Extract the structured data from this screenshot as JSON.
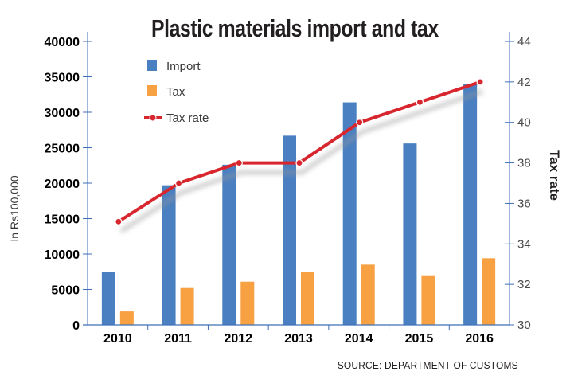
{
  "chart_data": {
    "type": "bar",
    "title": "Plastic materials import and tax",
    "ylabel": "In Rs100,000",
    "y2label": "Tax rate",
    "source": "SOURCE: DEPARTMENT OF CUSTOMS",
    "categories": [
      "2010",
      "2011",
      "2012",
      "2013",
      "2014",
      "2015",
      "2016"
    ],
    "ylim": [
      0,
      40000
    ],
    "y2lim": [
      30,
      44
    ],
    "yticks": [
      0,
      5000,
      10000,
      15000,
      20000,
      25000,
      30000,
      35000,
      40000
    ],
    "y2ticks": [
      30,
      32,
      34,
      36,
      38,
      40,
      42,
      44
    ],
    "series": [
      {
        "name": "Import",
        "type": "bar",
        "axis": "left",
        "color": "#4a7fc1",
        "values": [
          7500,
          19700,
          22600,
          26700,
          31400,
          25600,
          34000
        ]
      },
      {
        "name": "Tax",
        "type": "bar",
        "axis": "left",
        "color": "#f7a142",
        "values": [
          1900,
          5200,
          6100,
          7500,
          8500,
          7000,
          9400
        ]
      },
      {
        "name": "Tax rate",
        "type": "line",
        "axis": "right",
        "color": "#d7262e",
        "values": [
          35.1,
          37,
          38,
          38,
          40,
          41,
          42
        ]
      }
    ],
    "legend_position": "top-left",
    "grid": false
  }
}
